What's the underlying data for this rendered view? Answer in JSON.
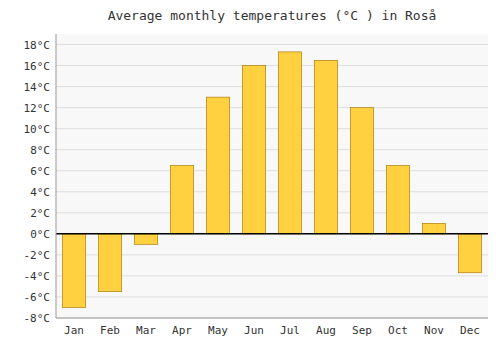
{
  "chart_data": {
    "type": "bar",
    "title": "Average monthly temperatures (°C ) in Roså",
    "categories": [
      "Jan",
      "Feb",
      "Mar",
      "Apr",
      "May",
      "Jun",
      "Jul",
      "Aug",
      "Sep",
      "Oct",
      "Nov",
      "Dec"
    ],
    "values": [
      -7.0,
      -5.5,
      -1.0,
      6.5,
      13.0,
      16.0,
      17.3,
      16.5,
      12.0,
      6.5,
      1.0,
      -3.7
    ],
    "color": "#FFD040",
    "ylim": [
      -8,
      19
    ],
    "yticks": [
      {
        "value": -8,
        "label": "-8°C"
      },
      {
        "value": -6,
        "label": "-6°C"
      },
      {
        "value": -4,
        "label": "-4°C"
      },
      {
        "value": -2,
        "label": "-2°C"
      },
      {
        "value": 0,
        "label": "0°C"
      },
      {
        "value": 2,
        "label": "2°C"
      },
      {
        "value": 4,
        "label": "4°C"
      },
      {
        "value": 6,
        "label": "6°C"
      },
      {
        "value": 8,
        "label": "8°C"
      },
      {
        "value": 10,
        "label": "10°C"
      },
      {
        "value": 12,
        "label": "12°C"
      },
      {
        "value": 14,
        "label": "14°C"
      },
      {
        "value": 16,
        "label": "16°C"
      },
      {
        "value": 18,
        "label": "18°C"
      }
    ],
    "grid": true
  }
}
